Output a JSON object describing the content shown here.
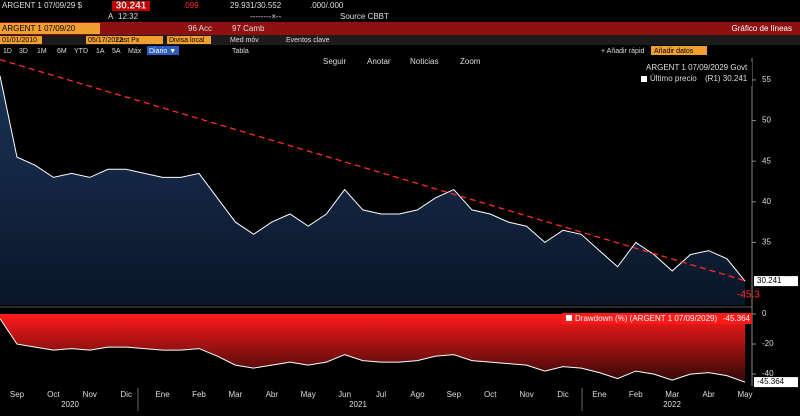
{
  "toolbar": {
    "ticker": "ARGENT 1 07/09/29 $",
    "price": "30.241",
    "change": ".099",
    "range": "29.931/30.552",
    "yield": ".000/.000",
    "time_prefix": "A",
    "time": "12:32",
    "dashes": "--------×--",
    "source": "Source CBBT",
    "security": "ARGENT 1 07/09/20",
    "actions": "96 Acc",
    "change_menu": "97 Camb",
    "view_title": "Gráfico de líneas",
    "start_date": "01/01/2010",
    "end_date": "05/17/2022",
    "field": "Last Px",
    "currency": "Divisa local",
    "moving_avg": "Med móv",
    "key_events": "Eventos clave",
    "periods": [
      "1D",
      "3D",
      "1M",
      "6M",
      "YTD",
      "1A",
      "5A",
      "Máx"
    ],
    "frequency": "Diario ▼",
    "table": "Tabla",
    "quick_add": "+ Añadir rápid",
    "add_data": "Añadir datos",
    "chart_tools": [
      "Seguir",
      "Anotar",
      "Noticias",
      "Zoom"
    ]
  },
  "chart_data": [
    {
      "type": "line",
      "legend_title": "ARGENT 1 07/09/2029 Govt",
      "categories": [
        null,
        "Sep",
        null,
        "Oct",
        null,
        "Nov",
        null,
        "Dic",
        null,
        "Ene",
        null,
        "Feb",
        null,
        "Mar",
        null,
        "Abr",
        null,
        "May",
        null,
        "Jun",
        null,
        "Jul",
        null,
        "Ago",
        null,
        "Sep",
        null,
        "Oct",
        null,
        "Nov",
        null,
        "Dic",
        null,
        "Ene",
        null,
        "Feb",
        null,
        "Mar",
        null,
        "Abr",
        null,
        "May"
      ],
      "year_labels": [
        "2020",
        "2021",
        "2022"
      ],
      "series": [
        {
          "name": "Último precio",
          "legend_value": "(R1) 30.241",
          "color": "#ffffff",
          "values": [
            55.5,
            45.5,
            44.5,
            43,
            43.5,
            43,
            44,
            44,
            43.5,
            43,
            43,
            43.5,
            40.5,
            37.5,
            36,
            37.5,
            38.5,
            37,
            38.5,
            41.5,
            39,
            38.5,
            38.5,
            39,
            40.5,
            41.5,
            39,
            38.5,
            37.5,
            37,
            35,
            36.5,
            36,
            34,
            32,
            35,
            33.5,
            31.5,
            33.5,
            34,
            33,
            30.241
          ],
          "value_labels": {
            "41": "30.241"
          }
        }
      ],
      "trendline": {
        "start": 57.5,
        "end": 30.3,
        "color": "#ff2a2a",
        "label": "-45.3"
      },
      "ylim": [
        27.3,
        57.7
      ],
      "yticks": [
        35,
        40,
        45,
        50,
        55
      ]
    },
    {
      "type": "area",
      "categories": [
        null,
        "Sep",
        null,
        "Oct",
        null,
        "Nov",
        null,
        "Dic",
        null,
        "Ene",
        null,
        "Feb",
        null,
        "Mar",
        null,
        "Abr",
        null,
        "May",
        null,
        "Jun",
        null,
        "Jul",
        null,
        "Ago",
        null,
        "Sep",
        null,
        "Oct",
        null,
        "Nov",
        null,
        "Dic",
        null,
        "Ene",
        null,
        "Feb",
        null,
        "Mar",
        null,
        "Abr",
        null,
        "May"
      ],
      "series": [
        {
          "name": "Drawdown (%) (ARGENT 1 07/09/2029)",
          "legend_value": "-45.364",
          "color": "#ff1a1a",
          "values": [
            -3,
            -20,
            -22,
            -24,
            -23,
            -24,
            -22,
            -22,
            -23,
            -24,
            -24,
            -23,
            -28,
            -34,
            -36,
            -34,
            -32,
            -34,
            -32,
            -27,
            -31,
            -32,
            -32,
            -31,
            -28,
            -27,
            -31,
            -32,
            -33,
            -34,
            -38,
            -35,
            -36,
            -39,
            -43,
            -38,
            -40,
            -44,
            -40,
            -39,
            -41,
            -45.364
          ],
          "value_labels": {
            "41": "-45.364"
          }
        }
      ],
      "ylim": [
        -47.3,
        2.7
      ],
      "yticks": [
        0,
        -20,
        -40
      ]
    }
  ]
}
